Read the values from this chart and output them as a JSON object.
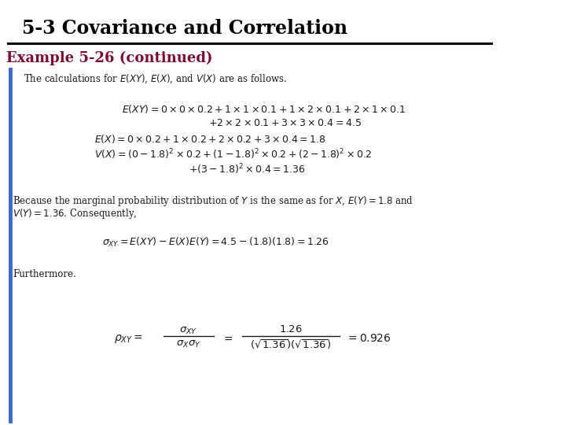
{
  "title": "5-3 Covariance and Correlation",
  "title_fontsize": 17,
  "title_color": "#000000",
  "example_label": "Example 5-26 (continued)",
  "example_color": "#7B0C2E",
  "example_fontsize": 13,
  "background_color": "#FFFFFF",
  "left_bar_color": "#3A6BC8",
  "line_color": "#000000",
  "text_color": "#1a1a1a",
  "body_fontsize": 8.5,
  "math_fontsize": 9.0
}
